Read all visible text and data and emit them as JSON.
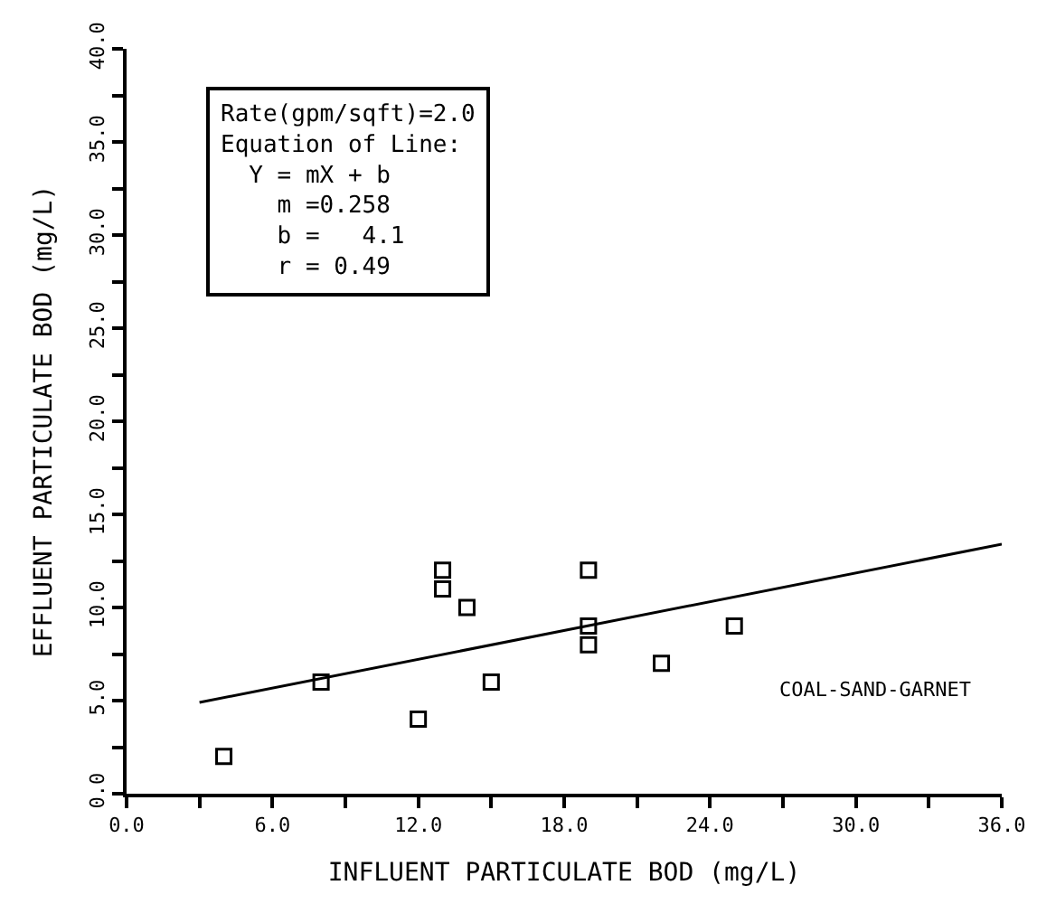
{
  "chart_data": {
    "type": "scatter",
    "xlabel": "INFLUENT PARTICULATE BOD (mg/L)",
    "ylabel": "EFFLUENT PARTICULATE BOD (mg/L)",
    "annotations": [
      "Rate(gpm/sqft)=2.0\nEquation of Line:\n  Y = mX + b\n    m =0.258\n    b =   4.1\n    r = 0.49",
      "COAL-SAND-GARNET"
    ],
    "marker": "square",
    "xlim": [
      0,
      36
    ],
    "ylim": [
      0,
      40
    ],
    "xticks": [
      {
        "value": 0,
        "label": "0.0"
      },
      {
        "value": 3,
        "label": null
      },
      {
        "value": 6,
        "label": "6.0"
      },
      {
        "value": 9,
        "label": null
      },
      {
        "value": 12,
        "label": "12.0"
      },
      {
        "value": 15,
        "label": null
      },
      {
        "value": 18,
        "label": "18.0"
      },
      {
        "value": 21,
        "label": null
      },
      {
        "value": 24,
        "label": "24.0"
      },
      {
        "value": 27,
        "label": null
      },
      {
        "value": 30,
        "label": "30.0"
      },
      {
        "value": 33,
        "label": null
      },
      {
        "value": 36,
        "label": "36.0"
      }
    ],
    "yticks": [
      {
        "value": 0,
        "label": "0.0"
      },
      {
        "value": 2.5,
        "label": null
      },
      {
        "value": 5,
        "label": "5.0"
      },
      {
        "value": 7.5,
        "label": null
      },
      {
        "value": 10,
        "label": "10.0"
      },
      {
        "value": 12.5,
        "label": null
      },
      {
        "value": 15,
        "label": "15.0"
      },
      {
        "value": 17.5,
        "label": null
      },
      {
        "value": 20,
        "label": "20.0"
      },
      {
        "value": 22.5,
        "label": null
      },
      {
        "value": 25,
        "label": "25.0"
      },
      {
        "value": 27.5,
        "label": null
      },
      {
        "value": 30,
        "label": "30.0"
      },
      {
        "value": 32.5,
        "label": null
      },
      {
        "value": 35,
        "label": "35.0"
      },
      {
        "value": 37.5,
        "label": null
      },
      {
        "value": 40,
        "label": "40.0"
      }
    ],
    "series": [
      {
        "color": "#000000",
        "x": [
          4,
          8,
          12,
          13,
          13,
          14,
          15,
          19,
          19,
          19,
          22,
          25
        ],
        "values": [
          2,
          6,
          4,
          12,
          11,
          10,
          6,
          12,
          9,
          8,
          7,
          9
        ]
      },
      {
        "type": "line",
        "color": "#000000",
        "marker": "none",
        "x": [
          3,
          36
        ],
        "values": [
          4.9,
          13.4
        ]
      }
    ]
  }
}
